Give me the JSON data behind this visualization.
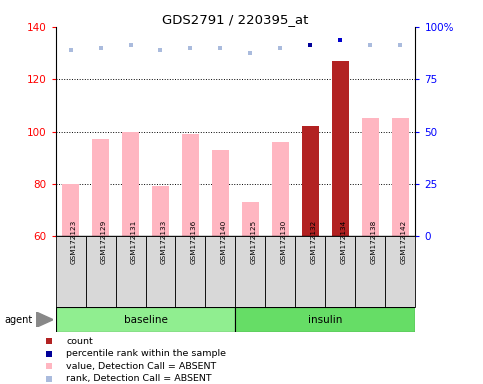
{
  "title": "GDS2791 / 220395_at",
  "samples": [
    "GSM172123",
    "GSM172129",
    "GSM172131",
    "GSM172133",
    "GSM172136",
    "GSM172140",
    "GSM172125",
    "GSM172130",
    "GSM172132",
    "GSM172134",
    "GSM172138",
    "GSM172142"
  ],
  "groups": [
    "baseline",
    "baseline",
    "baseline",
    "baseline",
    "baseline",
    "baseline",
    "insulin",
    "insulin",
    "insulin",
    "insulin",
    "insulin",
    "insulin"
  ],
  "bar_values": [
    80,
    97,
    100,
    79,
    99,
    93,
    73,
    96,
    102,
    127,
    105,
    105
  ],
  "bar_colors": [
    "#FFB6C1",
    "#FFB6C1",
    "#FFB6C1",
    "#FFB6C1",
    "#FFB6C1",
    "#FFB6C1",
    "#FFB6C1",
    "#FFB6C1",
    "#B22222",
    "#B22222",
    "#FFB6C1",
    "#FFB6C1"
  ],
  "rank_dots_y": [
    131,
    132,
    133,
    131,
    132,
    132,
    130,
    132,
    133,
    135,
    133,
    133
  ],
  "rank_dot_colors": [
    "#AABBDD",
    "#AABBDD",
    "#AABBDD",
    "#AABBDD",
    "#AABBDD",
    "#AABBDD",
    "#AABBDD",
    "#AABBDD",
    "#000099",
    "#0000CC",
    "#AABBDD",
    "#AABBDD"
  ],
  "ylim_left": [
    60,
    140
  ],
  "ylim_right": [
    0,
    100
  ],
  "yticks_left": [
    60,
    80,
    100,
    120,
    140
  ],
  "yticks_right": [
    0,
    25,
    50,
    75,
    100
  ],
  "ytick_labels_right": [
    "0",
    "25",
    "50",
    "75",
    "100%"
  ],
  "baseline_color": "#90EE90",
  "insulin_color": "#66DD66",
  "bar_bottom": 60,
  "legend_items": [
    {
      "color": "#B22222",
      "label": "count"
    },
    {
      "color": "#000099",
      "label": "percentile rank within the sample"
    },
    {
      "color": "#FFB6C1",
      "label": "value, Detection Call = ABSENT"
    },
    {
      "color": "#AABBDD",
      "label": "rank, Detection Call = ABSENT"
    }
  ]
}
